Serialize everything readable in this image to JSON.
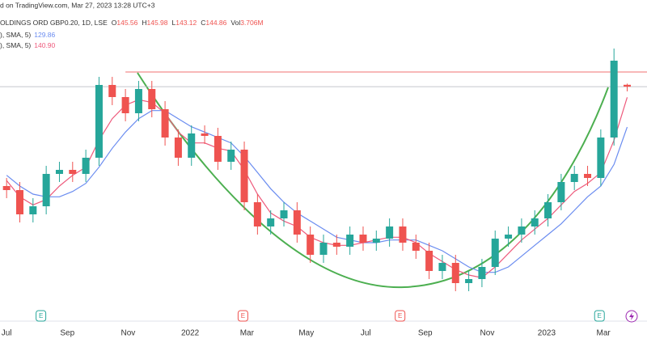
{
  "chart_data": {
    "type": "candlestick",
    "source_text": "d on TradingView.com, Mar 27, 2023 13:28 UTC+3",
    "symbol": "OLDINGS ORD GBP0.20, 1D, LSE",
    "ohlc_letters": [
      "O",
      "H",
      "L",
      "C"
    ],
    "volume_letter": "Vol",
    "volume": "3.706M",
    "xlim": [
      -0.5,
      48.5
    ],
    "ylim": [
      57,
      177
    ],
    "xticks": [
      {
        "value": 0,
        "label": "Jul"
      },
      {
        "value": 4.6,
        "label": "Sep"
      },
      {
        "value": 9.2,
        "label": "Nov"
      },
      {
        "value": 13.9,
        "label": "2022"
      },
      {
        "value": 18.2,
        "label": "Mar"
      },
      {
        "value": 22.7,
        "label": "May"
      },
      {
        "value": 27.2,
        "label": "Jul"
      },
      {
        "value": 31.7,
        "label": "Sep"
      },
      {
        "value": 36.4,
        "label": "Nov"
      },
      {
        "value": 40.9,
        "label": "2023"
      },
      {
        "value": 45.2,
        "label": "Mar"
      }
    ],
    "open": [
      108,
      106.5,
      97.5,
      100.5,
      112.5,
      114,
      112.5,
      118.5,
      145.5,
      141,
      135,
      144,
      136.5,
      126,
      118.5,
      127.5,
      126.6,
      117,
      121.5,
      102,
      93,
      96,
      99,
      90,
      82.5,
      87,
      85.5,
      90,
      87,
      88.5,
      93,
      87,
      84,
      76.5,
      79.5,
      72,
      73.5,
      78,
      88.5,
      90,
      93,
      96,
      102,
      109.5,
      112.5,
      111,
      126,
      145.56
    ],
    "high": [
      111,
      109.5,
      103.5,
      115.5,
      117,
      117,
      121.5,
      148.5,
      148.5,
      144,
      147,
      147,
      139.5,
      129,
      130.5,
      130.5,
      129.6,
      124.5,
      124.5,
      105,
      99,
      102,
      102,
      93,
      90,
      90,
      93,
      93,
      91.5,
      96,
      96,
      90,
      87,
      82.5,
      82.5,
      76.5,
      81,
      91.5,
      93,
      96,
      99,
      105,
      112.5,
      115.5,
      115.5,
      129,
      159,
      145.98
    ],
    "low": [
      103.5,
      94.5,
      94.5,
      97.5,
      109.5,
      109.5,
      109.5,
      115.5,
      138,
      132,
      132,
      133.5,
      123,
      115.5,
      115.5,
      123.6,
      114,
      114,
      99,
      90,
      90,
      93,
      87,
      79.5,
      79.5,
      82.5,
      82.5,
      84,
      84,
      85.5,
      84,
      81,
      73.5,
      73.5,
      69,
      69,
      70.5,
      75,
      85.5,
      87,
      90,
      93,
      99,
      106.5,
      108,
      108,
      123,
      143.12
    ],
    "close": [
      106.5,
      97.5,
      100.5,
      112.5,
      114,
      112.5,
      118.5,
      145.5,
      141,
      135,
      144,
      136.5,
      126,
      118.5,
      127.5,
      126.6,
      117,
      121.5,
      102,
      93,
      96,
      99,
      90,
      82.5,
      87,
      85.5,
      90,
      87,
      88.5,
      93,
      87,
      84,
      76.5,
      79.5,
      72,
      73.5,
      78,
      88.5,
      90,
      93,
      96,
      102,
      109.5,
      112.5,
      111,
      126,
      154.5,
      144.86
    ],
    "up_color": "#26a69a",
    "down_color": "#ef5350",
    "series": [
      {
        "name": "), SMA, 5)",
        "color": "#6a8cf0",
        "last_value_label": "129.86",
        "values": [
          112,
          108,
          105,
          104,
          104,
          106,
          109,
          115,
          122,
          128,
          133,
          136,
          136,
          133,
          130,
          128,
          126,
          124,
          119,
          113,
          107,
          102,
          98,
          95,
          92,
          89,
          88,
          87,
          87,
          88,
          88,
          88,
          86,
          84,
          81,
          78,
          76,
          76,
          78,
          82,
          86,
          90,
          94,
          99,
          104,
          108,
          116,
          129.86
        ]
      },
      {
        "name": "), SMA, 5)",
        "color": "#ee5a7c",
        "last_value_label": "140.90",
        "values": [
          110,
          104,
          101,
          103,
          108,
          112,
          115,
          125,
          133,
          138,
          140,
          139,
          135,
          128,
          124,
          124,
          122,
          121,
          114,
          105,
          98,
          95,
          93,
          89,
          87,
          86,
          86,
          87,
          88,
          89,
          89,
          87,
          83,
          80,
          77,
          75,
          74,
          78,
          83,
          88,
          92,
          96,
          101,
          106,
          109,
          113,
          125,
          140.9
        ]
      }
    ],
    "level_line": {
      "value": 150.3,
      "color": "#f07070",
      "from_x": 9.0
    },
    "events": [
      {
        "x": 2.6,
        "label": "E",
        "color": "#26a69a"
      },
      {
        "x": 17.9,
        "label": "E",
        "color": "#ef5350"
      },
      {
        "x": 29.8,
        "label": "E",
        "color": "#ef5350"
      },
      {
        "x": 44.9,
        "label": "E",
        "color": "#26a69a"
      }
    ]
  }
}
